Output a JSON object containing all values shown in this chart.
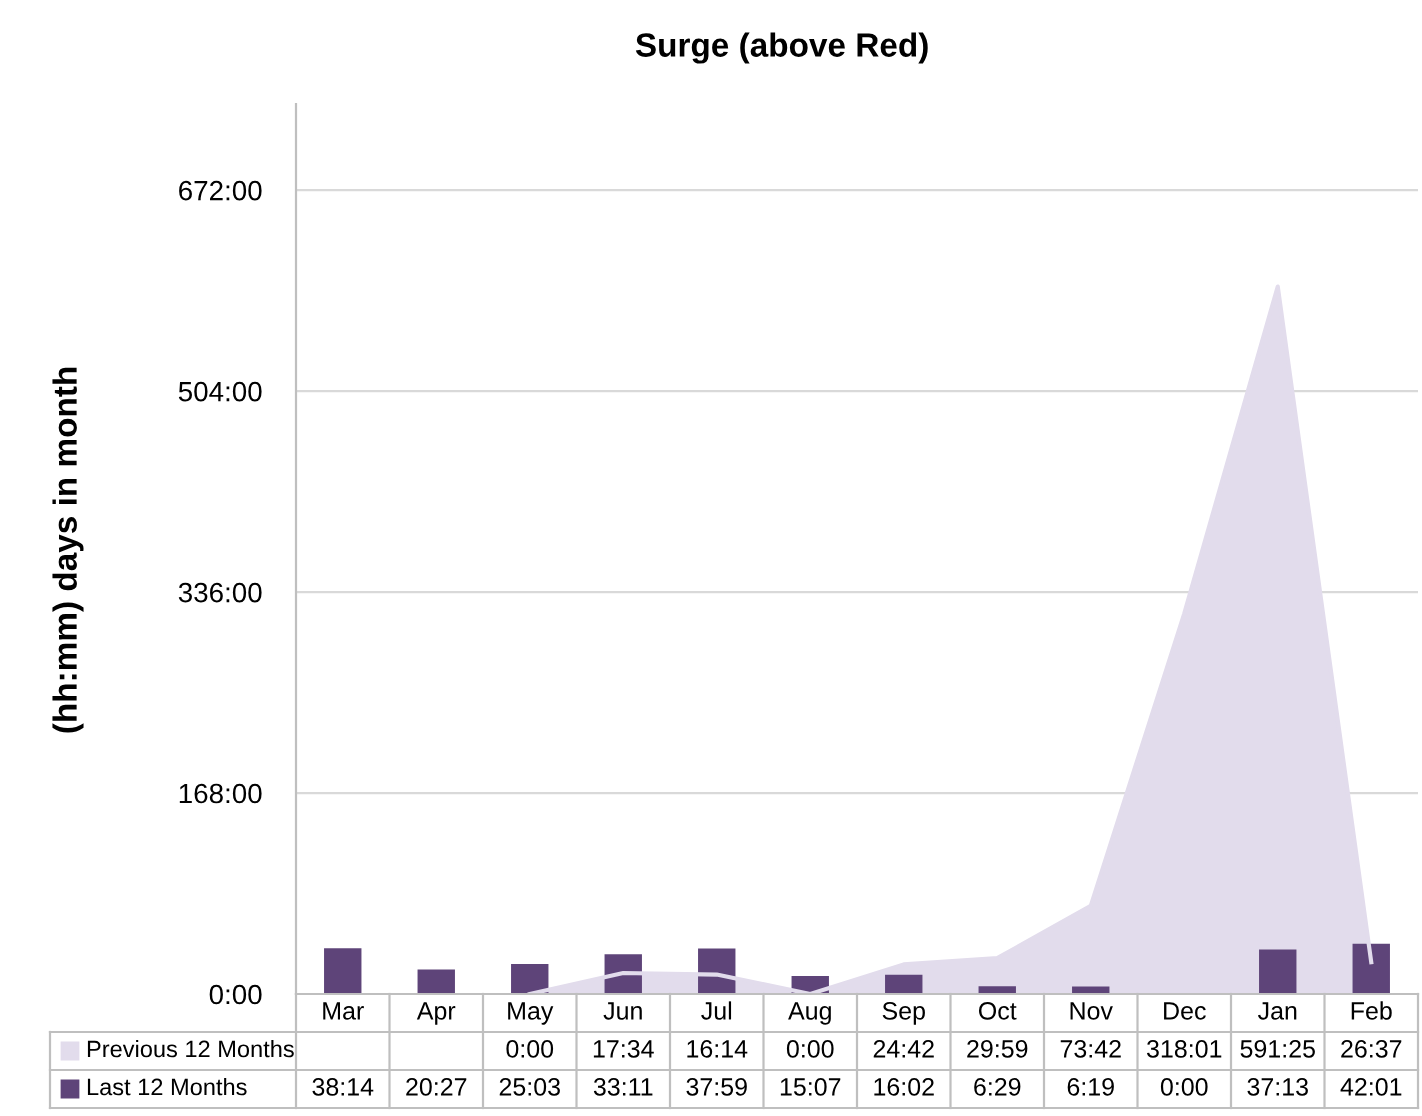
{
  "chart_data": {
    "type": "bar",
    "title": "Surge (above Red)",
    "ylabel": "(hh:mm) days in month",
    "categories": [
      "Mar",
      "Apr",
      "May",
      "Jun",
      "Jul",
      "Aug",
      "Sep",
      "Oct",
      "Nov",
      "Dec",
      "Jan",
      "Feb"
    ],
    "series": [
      {
        "name": "Previous 12 Months",
        "type": "area",
        "color": "#e2dcec",
        "values": [
          null,
          null,
          0,
          17.567,
          16.233,
          0,
          24.7,
          29.983,
          73.7,
          318.017,
          591.417,
          26.617
        ],
        "value_labels": [
          null,
          null,
          "0:00",
          "17:34",
          "16:14",
          "0:00",
          "24:42",
          "29:59",
          "73:42",
          "318:01",
          "591:25",
          "26:37"
        ]
      },
      {
        "name": "Last 12 Months",
        "color": "#5e4479",
        "values": [
          38.233,
          20.45,
          25.05,
          33.183,
          37.983,
          15.117,
          16.033,
          6.483,
          6.317,
          0,
          37.217,
          42.017
        ],
        "value_labels": [
          "38:14",
          "20:27",
          "25:03",
          "33:11",
          "37:59",
          "15:07",
          "16:02",
          "6:29",
          "6:19",
          "0:00",
          "37:13",
          "42:01"
        ]
      }
    ],
    "ylim": [
      0,
      744
    ],
    "yticks": [
      {
        "value": 0,
        "label": "0:00"
      },
      {
        "value": 168,
        "label": "168:00"
      },
      {
        "value": 336,
        "label": "336:00"
      },
      {
        "value": 504,
        "label": "504:00"
      },
      {
        "value": 672,
        "label": "672:00"
      }
    ],
    "grid": "y",
    "legend": "bottom left"
  }
}
